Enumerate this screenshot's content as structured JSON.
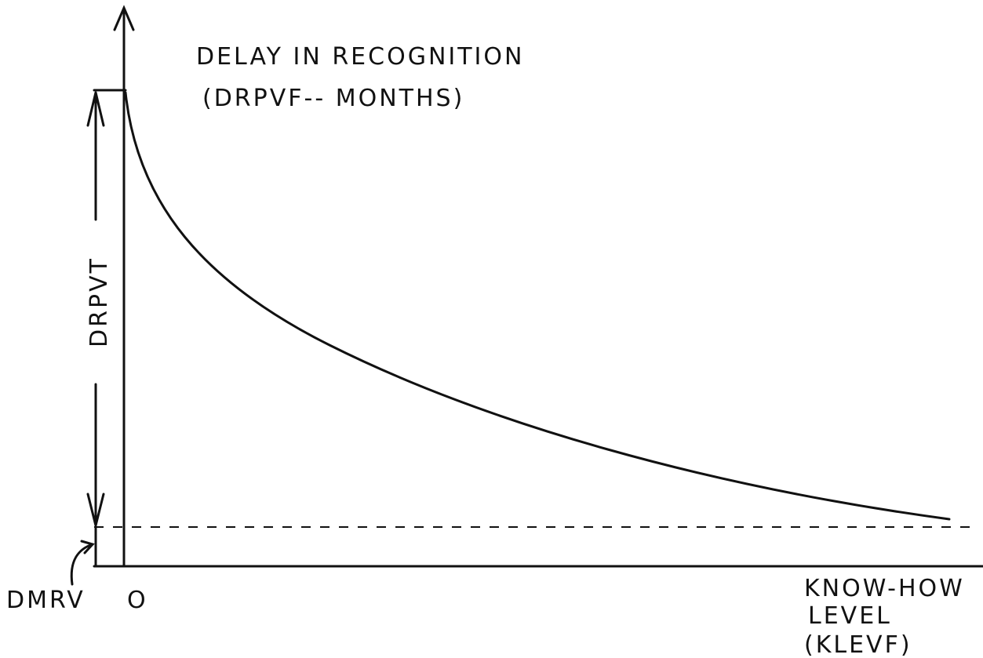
{
  "title": {
    "line1": "DELAY IN RECOGNITION",
    "line2": "(DRPVF-- MONTHS)"
  },
  "labels": {
    "span": "DRPVT",
    "minimum": "DMRV",
    "origin": "O",
    "x_axis": [
      "KNOW-HOW",
      "LEVEL",
      "(KLEVF)"
    ]
  }
}
